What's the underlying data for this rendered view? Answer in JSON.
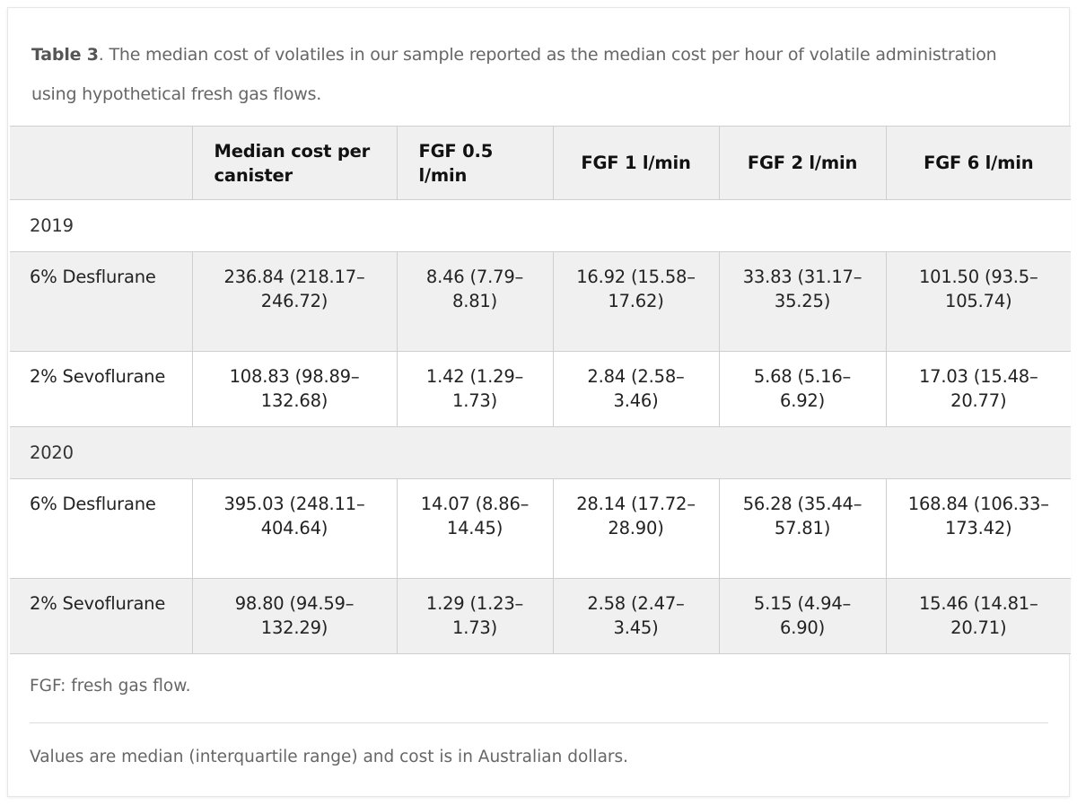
{
  "caption": {
    "label": "Table 3",
    "text": ". The median cost of volatiles in our sample reported as the median cost per hour of volatile administration using hypothetical fresh gas flows."
  },
  "table": {
    "headers": [
      "",
      "Median cost per canister",
      "FGF 0.5 l/min",
      "FGF 1 l/min",
      "FGF 2 l/min",
      "FGF 6 l/min"
    ],
    "groups": [
      {
        "year": "2019",
        "rows": [
          {
            "agent": "6% Desflurane",
            "values": [
              "236.84 (218.17–246.72)",
              "8.46 (7.79–8.81)",
              "16.92 (15.58–17.62)",
              "33.83 (31.17–35.25)",
              "101.50 (93.5–105.74)"
            ]
          },
          {
            "agent": "2% Sevoflurane",
            "values": [
              "108.83 (98.89–132.68)",
              "1.42 (1.29–1.73)",
              "2.84 (2.58–3.46)",
              "5.68 (5.16–6.92)",
              "17.03 (15.48–20.77)"
            ]
          }
        ]
      },
      {
        "year": "2020",
        "rows": [
          {
            "agent": "6% Desflurane",
            "values": [
              "395.03 (248.11–404.64)",
              "14.07 (8.86–14.45)",
              "28.14 (17.72–28.90)",
              "56.28 (35.44–57.81)",
              "168.84 (106.33–173.42)"
            ]
          },
          {
            "agent": "2% Sevoflurane",
            "values": [
              "98.80 (94.59–132.29)",
              "1.29 (1.23–1.73)",
              "2.58 (2.47–3.45)",
              "5.15 (4.94–6.90)",
              "15.46 (14.81–20.71)"
            ]
          }
        ]
      }
    ]
  },
  "footnotes": {
    "abbrev": "FGF: fresh gas flow.",
    "note": "Values are median (interquartile range) and cost is in Australian dollars."
  }
}
